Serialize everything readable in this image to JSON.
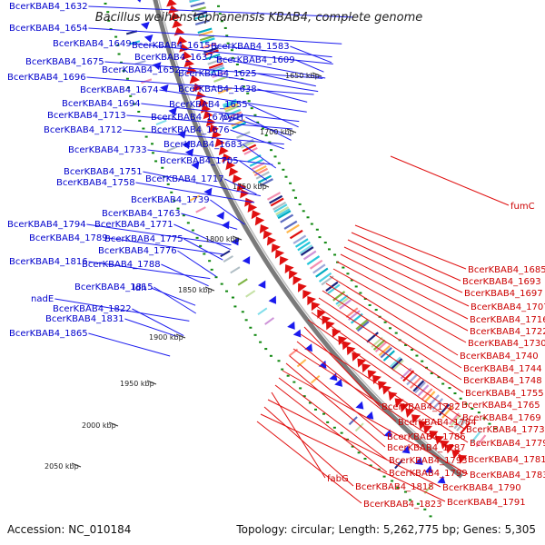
{
  "title": "Bacillus weihenstephanensis KBAB4, complete genome",
  "footer": {
    "accession": "Accession: NC_010184",
    "summary": "Topology: circular; Length: 5,262,775 bp; Genes: 5,305"
  },
  "colors": {
    "forward": "#1a1aee",
    "reverse": "#e01010",
    "backbone": "#7a7a7a",
    "gc": "#118811",
    "left_label": "#0000cc",
    "right_label": "#cc0000"
  },
  "ticks": [
    "1650 kbp",
    "1700 kbp",
    "1750 kbp",
    "1800 kbp",
    "1850 kbp",
    "1900 kbp",
    "1950 kbp",
    "2000 kbp",
    "2050 kbp"
  ],
  "left_labels": [
    "BcerKBAB4_1632",
    "BcerKBAB4_1654",
    "BcerKBAB4_1649",
    "BcerKBAB4_1615",
    "BcerKBAB4_1583",
    "BcerKBAB4_1637",
    "BcerKBAB4_1609",
    "BcerKBAB4_1675",
    "BcerKBAB4_1652",
    "BcerKBAB4_1625",
    "BcerKBAB4_1696",
    "BcerKBAB4_1674",
    "BcerKBAB4_1638",
    "BcerKBAB4_1694",
    "BcerKBAB4_1655",
    "BcerKBAB4_1713",
    "BcerKBAB4_1670",
    "pyrH",
    "BcerKBAB4_1712",
    "BcerKBAB4_1676",
    "BcerKBAB4_1683",
    "BcerKBAB4_1733",
    "BcerKBAB4_1705",
    "BcerKBAB4_1751",
    "BcerKBAB4_1717",
    "BcerKBAB4_1758",
    "BcerKBAB4_1739",
    "BcerKBAB4_1763",
    "BcerKBAB4_1794",
    "BcerKBAB4_1771",
    "BcerKBAB4_1789",
    "BcerKBAB4_1775",
    "BcerKBAB4_1776",
    "BcerKBAB4_1816",
    "BcerKBAB4_1788",
    "BcerKBAB4_1815",
    "ldh",
    "nadE",
    "BcerKBAB4_1822",
    "BcerKBAB4_1831",
    "BcerKBAB4_1865"
  ],
  "right_labels": [
    "fumC",
    "BcerKBAB4_1685",
    "BcerKBAB4_1693",
    "BcerKBAB4_1697",
    "BcerKBAB4_1707",
    "BcerKBAB4_1716",
    "BcerKBAB4_1722",
    "BcerKBAB4_1730",
    "BcerKBAB4_1740",
    "BcerKBAB4_1744",
    "BcerKBAB4_1748",
    "BcerKBAB4_1755",
    "BcerKBAB4_1765",
    "BcerKBAB4_1769",
    "BcerKBAB4_1773",
    "BcerKBAB4_1782",
    "BcerKBAB4_1779",
    "BcerKBAB4_1784",
    "BcerKBAB4_1781",
    "BcerKBAB4_1786",
    "BcerKBAB4_1787",
    "BcerKBAB4_1783",
    "BcerKBAB4_1793",
    "BcerKBAB4_1799",
    "fabG",
    "BcerKBAB4_1790",
    "BcerKBAB4_1818",
    "BcerKBAB4_1791",
    "BcerKBAB4_1823"
  ]
}
